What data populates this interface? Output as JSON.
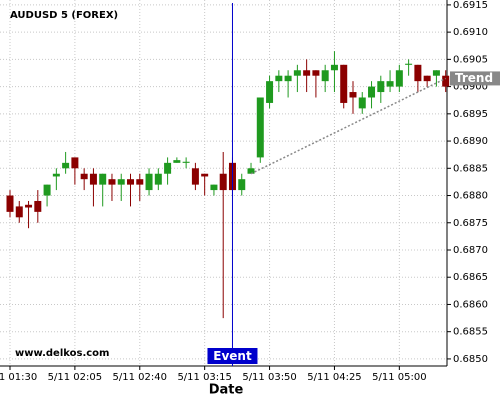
{
  "chart_data": {
    "type": "candlestick",
    "title": "AUDUSD 5 (FOREX)",
    "x_label": "Date",
    "watermark": "www.delkos.com",
    "categories": [
      "5/11 01:30",
      null,
      null,
      null,
      null,
      null,
      null,
      "5/11 02:05",
      null,
      null,
      null,
      null,
      null,
      null,
      "5/11 02:40",
      null,
      null,
      null,
      null,
      null,
      null,
      "5/11 03:15",
      null,
      null,
      null,
      null,
      null,
      null,
      "5/11 03:50",
      null,
      null,
      null,
      null,
      null,
      null,
      "5/11 04:25",
      null,
      null,
      null,
      null,
      null,
      null,
      "5/11 05:00",
      null,
      null,
      null,
      null,
      null
    ],
    "open": [
      0.688,
      0.6878,
      0.68783,
      0.6879,
      0.688,
      0.68835,
      0.6885,
      0.6887,
      0.6884,
      0.6884,
      0.6882,
      0.6883,
      0.6882,
      0.6883,
      0.6883,
      0.6881,
      0.6882,
      0.6884,
      0.6886,
      0.6886,
      0.6885,
      0.6884,
      0.6881,
      0.6884,
      0.6886,
      0.6881,
      0.6884,
      0.6887,
      0.6897,
      0.6901,
      0.6901,
      0.6902,
      0.6903,
      0.6903,
      0.6901,
      0.6903,
      0.6904,
      0.6899,
      0.6896,
      0.6898,
      0.6899,
      0.69,
      0.69,
      0.6904,
      0.6904,
      0.6902,
      0.6902,
      0.6902
    ],
    "high": [
      0.6881,
      0.6879,
      0.6879,
      0.6881,
      0.6882,
      0.6885,
      0.6888,
      0.6887,
      0.6885,
      0.6885,
      0.6884,
      0.6884,
      0.6884,
      0.6884,
      0.6884,
      0.6885,
      0.6885,
      0.6887,
      0.6887,
      0.6887,
      0.6886,
      0.6884,
      0.6882,
      0.6888,
      0.6887,
      0.6884,
      0.6886,
      0.6898,
      0.6902,
      0.6903,
      0.6903,
      0.6904,
      0.6905,
      0.6903,
      0.6904,
      0.69065,
      0.6904,
      0.6901,
      0.6899,
      0.6901,
      0.6902,
      0.6903,
      0.6904,
      0.6905,
      0.6904,
      0.6902,
      0.6903,
      0.6903
    ],
    "low": [
      0.6876,
      0.6875,
      0.6874,
      0.6875,
      0.6878,
      0.6881,
      0.6884,
      0.6882,
      0.6881,
      0.6878,
      0.6878,
      0.6879,
      0.6879,
      0.6878,
      0.6879,
      0.688,
      0.6881,
      0.6882,
      0.6886,
      0.6885,
      0.6881,
      0.688,
      0.688,
      0.68575,
      0.688,
      0.688,
      0.6884,
      0.6886,
      0.6896,
      0.6899,
      0.6898,
      0.6899,
      0.6899,
      0.6898,
      0.6899,
      0.6899,
      0.6896,
      0.6895,
      0.6895,
      0.6896,
      0.6897,
      0.6899,
      0.6899,
      0.6902,
      0.6899,
      0.69,
      0.69,
      0.6899
    ],
    "close": [
      0.6877,
      0.6876,
      0.68778,
      0.6877,
      0.6882,
      0.6884,
      0.6886,
      0.6885,
      0.6883,
      0.6882,
      0.6884,
      0.6882,
      0.6883,
      0.6882,
      0.6882,
      0.6884,
      0.6884,
      0.6886,
      0.68865,
      0.68862,
      0.6882,
      0.68835,
      0.6882,
      0.6881,
      0.6881,
      0.6883,
      0.6885,
      0.6898,
      0.6901,
      0.6902,
      0.6902,
      0.6903,
      0.6902,
      0.6902,
      0.6903,
      0.6904,
      0.6897,
      0.6898,
      0.6898,
      0.69,
      0.6901,
      0.6901,
      0.6903,
      0.69042,
      0.6901,
      0.6901,
      0.6903,
      0.69
    ],
    "up_color": "#1f9a1f",
    "down_color": "#8b0000",
    "ylim": [
      0.68487,
      0.69159
    ],
    "yticks": [
      {
        "value": 0.685,
        "label": "0.6850"
      },
      0.6855,
      {
        "value": 0.686,
        "label": "0.6860"
      },
      0.6865,
      {
        "value": 0.687,
        "label": "0.6870"
      },
      0.6875,
      {
        "value": 0.688,
        "label": "0.6880"
      },
      0.6885,
      {
        "value": 0.689,
        "label": "0.6890"
      },
      0.6895,
      {
        "value": 0.69,
        "label": "0.6900"
      },
      0.6905,
      {
        "value": 0.691,
        "label": "0.6910"
      },
      0.6915
    ],
    "grid": true,
    "event": {
      "index": 24,
      "label": "Event",
      "color": "#0000cc"
    },
    "trend": {
      "label": "Trend",
      "x": [
        26,
        47
      ],
      "y": [
        0.6884,
        0.69015
      ],
      "color": "#888888"
    }
  }
}
